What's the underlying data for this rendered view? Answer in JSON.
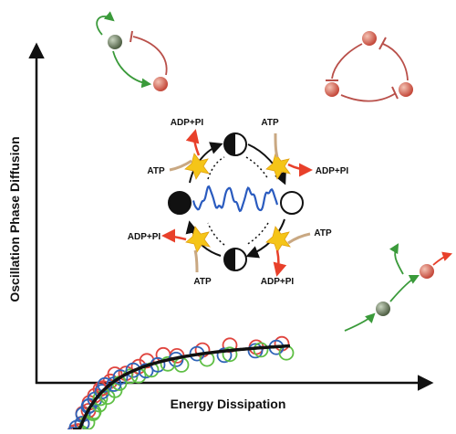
{
  "axes": {
    "xlabel": "Energy Dissipation",
    "ylabel": "Oscillation Phase Diffusion"
  },
  "cycle": {
    "labels": [
      "ADP+PI",
      "ATP",
      "ATP",
      "ADP+PI",
      "ADP+PI",
      "ATP",
      "ATP",
      "ADP+PI"
    ],
    "states": [
      "half-filled",
      "empty",
      "half-filled",
      "filled"
    ]
  },
  "markers": {
    "colors": [
      "#e0443e",
      "#2f63b8",
      "#5fbf45"
    ]
  },
  "colors": {
    "curve": "#111111",
    "wave": "#2a5bbf",
    "node_green": "#6e7f62",
    "node_red": "#d05a4a",
    "arrow_red": "#e8402a",
    "arrow_tan": "#c9a882",
    "star": "#f5c518"
  }
}
